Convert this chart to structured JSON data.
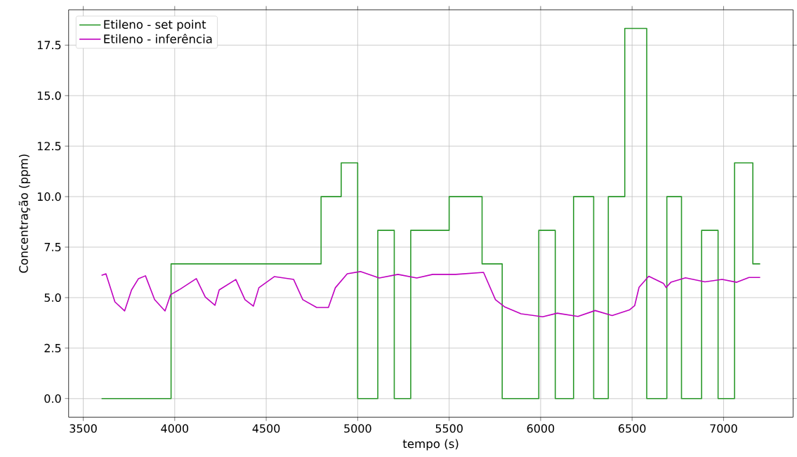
{
  "chart_data": {
    "type": "line",
    "xlabel": "tempo (s)",
    "ylabel": "Concentração (ppm)",
    "xlim": [
      3420,
      7380
    ],
    "ylim": [
      -0.92,
      19.25
    ],
    "xticks": [
      3500,
      4000,
      4500,
      5000,
      5500,
      6000,
      6500,
      7000
    ],
    "yticks": [
      {
        "value": 0,
        "label": "0.0"
      },
      {
        "value": 2.5,
        "label": "2.5"
      },
      {
        "value": 5,
        "label": "5.0"
      },
      {
        "value": 7.5,
        "label": "7.5"
      },
      {
        "value": 10,
        "label": "10.0"
      },
      {
        "value": 12.5,
        "label": "12.5"
      },
      {
        "value": 15,
        "label": "15.0"
      },
      {
        "value": 17.5,
        "label": "17.5"
      }
    ],
    "grid": true,
    "legend": "top left",
    "series": [
      {
        "name": "Etileno - set point",
        "type": "step",
        "color": "#2a992a",
        "x": [
          3600,
          3980,
          4800,
          4910,
          5000,
          5110,
          5200,
          5290,
          5500,
          5680,
          5790,
          5990,
          6080,
          6180,
          6290,
          6370,
          6460,
          6580,
          6690,
          6770,
          6880,
          6970,
          7060,
          7160,
          7200
        ],
        "values": [
          0,
          6.67,
          10,
          11.67,
          0,
          8.33,
          0,
          8.33,
          10,
          6.67,
          0,
          8.33,
          0,
          10,
          0,
          10,
          18.33,
          0,
          10,
          0,
          8.33,
          0,
          11.67,
          6.67,
          6.67
        ]
      },
      {
        "name": "Etileno - inferência",
        "color": "#bf00bf",
        "x": [
          3600,
          3624,
          3673,
          3726,
          3764,
          3802,
          3840,
          3890,
          3947,
          3977,
          4030,
          4118,
          4167,
          4220,
          4243,
          4334,
          4384,
          4430,
          4460,
          4544,
          4650,
          4700,
          4776,
          4840,
          4878,
          4943,
          5015,
          5118,
          5220,
          5323,
          5410,
          5536,
          5688,
          5753,
          5802,
          5893,
          6011,
          6091,
          6204,
          6298,
          6391,
          6485,
          6514,
          6538,
          6591,
          6672,
          6686,
          6712,
          6792,
          6898,
          6992,
          7072,
          7139,
          7200
        ],
        "values": [
          6.1,
          6.18,
          4.79,
          4.34,
          5.38,
          5.94,
          6.08,
          4.9,
          4.34,
          5.14,
          5.42,
          5.94,
          5.03,
          4.62,
          5.38,
          5.9,
          4.9,
          4.58,
          5.49,
          6.04,
          5.9,
          4.9,
          4.51,
          4.51,
          5.49,
          6.18,
          6.29,
          5.97,
          6.15,
          5.97,
          6.15,
          6.15,
          6.25,
          4.9,
          4.55,
          4.2,
          4.05,
          4.23,
          4.07,
          4.36,
          4.11,
          4.39,
          4.6,
          5.51,
          6.06,
          5.7,
          5.5,
          5.76,
          5.98,
          5.78,
          5.9,
          5.76,
          6.0,
          6.0
        ]
      }
    ]
  }
}
